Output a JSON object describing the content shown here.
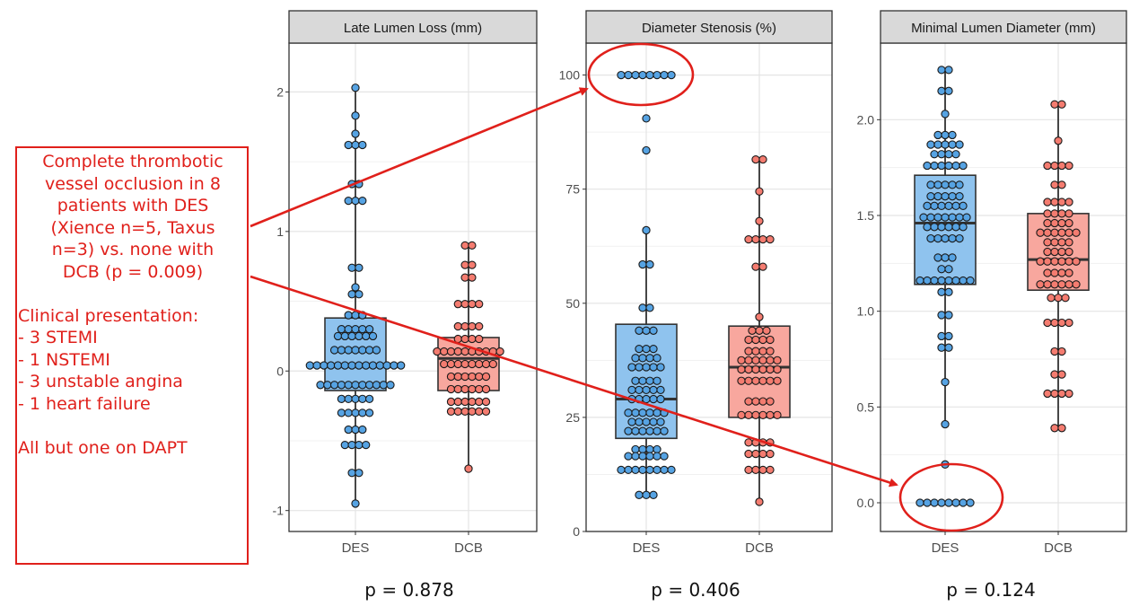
{
  "annotation": {
    "occlusion_lines": [
      "Complete thrombotic",
      "vessel occlusion in 8",
      "patients with DES",
      "(Xience n=5, Taxus",
      "n=3) vs. none with",
      "DCB (p = 0.009)"
    ],
    "presentation_title": "Clinical presentation:",
    "presentation_items": [
      "- 3 STEMI",
      "- 1 NSTEMI",
      "- 3 unstable angina",
      "- 1 heart failure"
    ],
    "dapt_note": "All but one on DAPT"
  },
  "pvalues": [
    "p = 0.878",
    "p = 0.406",
    "p = 0.124"
  ],
  "colors": {
    "des_fill": "#8fc3ee",
    "des_point": "#56a3e3",
    "dcb_fill": "#f8a79e",
    "dcb_point": "#f47c70",
    "annotation": "#e0201b"
  },
  "chart_data": [
    {
      "type": "box",
      "title": "Late Lumen Loss (mm)",
      "categories": [
        "DES",
        "DCB"
      ],
      "ylim": [
        -1.15,
        2.35
      ],
      "yticks": [
        -1,
        0,
        1,
        2
      ],
      "ytick_labels": [
        "-1",
        "0",
        "1",
        "2"
      ],
      "grid": true,
      "boxes": [
        {
          "name": "DES",
          "min": -0.95,
          "q1": -0.14,
          "median": -0.1,
          "q3": 0.38,
          "max": 2.03
        },
        {
          "name": "DCB",
          "min": -0.7,
          "q1": -0.14,
          "median": 0.09,
          "q3": 0.24,
          "max": 0.9
        }
      ],
      "points": [
        {
          "group": "DES",
          "y": 2.03,
          "n": 1
        },
        {
          "group": "DES",
          "y": 1.83,
          "n": 1
        },
        {
          "group": "DES",
          "y": 1.7,
          "n": 1
        },
        {
          "group": "DES",
          "y": 1.62,
          "n": 3
        },
        {
          "group": "DES",
          "y": 1.34,
          "n": 2
        },
        {
          "group": "DES",
          "y": 1.22,
          "n": 3
        },
        {
          "group": "DES",
          "y": 0.74,
          "n": 2
        },
        {
          "group": "DES",
          "y": 0.6,
          "n": 1
        },
        {
          "group": "DES",
          "y": 0.55,
          "n": 2
        },
        {
          "group": "DES",
          "y": 0.4,
          "n": 3
        },
        {
          "group": "DES",
          "y": 0.3,
          "n": 5
        },
        {
          "group": "DES",
          "y": 0.25,
          "n": 6
        },
        {
          "group": "DES",
          "y": 0.15,
          "n": 7
        },
        {
          "group": "DES",
          "y": 0.04,
          "n": 14
        },
        {
          "group": "DES",
          "y": -0.1,
          "n": 11
        },
        {
          "group": "DES",
          "y": -0.2,
          "n": 5
        },
        {
          "group": "DES",
          "y": -0.3,
          "n": 5
        },
        {
          "group": "DES",
          "y": -0.42,
          "n": 3
        },
        {
          "group": "DES",
          "y": -0.53,
          "n": 4
        },
        {
          "group": "DES",
          "y": -0.73,
          "n": 2
        },
        {
          "group": "DES",
          "y": -0.95,
          "n": 1
        },
        {
          "group": "DCB",
          "y": 0.9,
          "n": 2
        },
        {
          "group": "DCB",
          "y": 0.76,
          "n": 2
        },
        {
          "group": "DCB",
          "y": 0.67,
          "n": 2
        },
        {
          "group": "DCB",
          "y": 0.48,
          "n": 4
        },
        {
          "group": "DCB",
          "y": 0.32,
          "n": 4
        },
        {
          "group": "DCB",
          "y": 0.23,
          "n": 4
        },
        {
          "group": "DCB",
          "y": 0.14,
          "n": 10
        },
        {
          "group": "DCB",
          "y": 0.05,
          "n": 8
        },
        {
          "group": "DCB",
          "y": -0.04,
          "n": 6
        },
        {
          "group": "DCB",
          "y": -0.13,
          "n": 6
        },
        {
          "group": "DCB",
          "y": -0.22,
          "n": 6
        },
        {
          "group": "DCB",
          "y": -0.29,
          "n": 6
        },
        {
          "group": "DCB",
          "y": -0.7,
          "n": 1
        }
      ]
    },
    {
      "type": "box",
      "title": "Diameter Stenosis (%)",
      "categories": [
        "DES",
        "DCB"
      ],
      "ylim": [
        0,
        107
      ],
      "yticks": [
        0,
        25,
        50,
        75,
        100
      ],
      "ytick_labels": [
        "0",
        "25",
        "50",
        "75",
        "100"
      ],
      "grid": true,
      "boxes": [
        {
          "name": "DES",
          "min": 8,
          "q1": 20.4,
          "median": 29,
          "q3": 45.4,
          "max": 66
        },
        {
          "name": "DCB",
          "min": 6.5,
          "q1": 25,
          "median": 36,
          "q3": 45,
          "max": 81.5
        }
      ],
      "points": [
        {
          "group": "DES",
          "y": 100,
          "n": 8
        },
        {
          "group": "DES",
          "y": 90.5,
          "n": 1
        },
        {
          "group": "DES",
          "y": 83.5,
          "n": 1
        },
        {
          "group": "DES",
          "y": 66,
          "n": 1
        },
        {
          "group": "DES",
          "y": 58.5,
          "n": 2
        },
        {
          "group": "DES",
          "y": 49,
          "n": 2
        },
        {
          "group": "DES",
          "y": 44,
          "n": 3
        },
        {
          "group": "DES",
          "y": 40,
          "n": 3
        },
        {
          "group": "DES",
          "y": 38,
          "n": 4
        },
        {
          "group": "DES",
          "y": 36,
          "n": 5
        },
        {
          "group": "DES",
          "y": 33,
          "n": 4
        },
        {
          "group": "DES",
          "y": 31,
          "n": 5
        },
        {
          "group": "DES",
          "y": 29,
          "n": 5
        },
        {
          "group": "DES",
          "y": 26,
          "n": 6
        },
        {
          "group": "DES",
          "y": 24,
          "n": 5
        },
        {
          "group": "DES",
          "y": 22,
          "n": 6
        },
        {
          "group": "DES",
          "y": 18,
          "n": 4
        },
        {
          "group": "DES",
          "y": 16.5,
          "n": 6
        },
        {
          "group": "DES",
          "y": 13.5,
          "n": 8
        },
        {
          "group": "DES",
          "y": 8,
          "n": 3
        },
        {
          "group": "DCB",
          "y": 81.5,
          "n": 2
        },
        {
          "group": "DCB",
          "y": 74.5,
          "n": 1
        },
        {
          "group": "DCB",
          "y": 68,
          "n": 1
        },
        {
          "group": "DCB",
          "y": 64,
          "n": 4
        },
        {
          "group": "DCB",
          "y": 58,
          "n": 2
        },
        {
          "group": "DCB",
          "y": 47,
          "n": 1
        },
        {
          "group": "DCB",
          "y": 44,
          "n": 3
        },
        {
          "group": "DCB",
          "y": 42,
          "n": 4
        },
        {
          "group": "DCB",
          "y": 39.5,
          "n": 4
        },
        {
          "group": "DCB",
          "y": 37.5,
          "n": 6
        },
        {
          "group": "DCB",
          "y": 35.5,
          "n": 6
        },
        {
          "group": "DCB",
          "y": 33,
          "n": 6
        },
        {
          "group": "DCB",
          "y": 28.5,
          "n": 4
        },
        {
          "group": "DCB",
          "y": 25.5,
          "n": 6
        },
        {
          "group": "DCB",
          "y": 19.5,
          "n": 4
        },
        {
          "group": "DCB",
          "y": 17,
          "n": 4
        },
        {
          "group": "DCB",
          "y": 13.5,
          "n": 4
        },
        {
          "group": "DCB",
          "y": 6.5,
          "n": 1
        }
      ]
    },
    {
      "type": "box",
      "title": "Minimal Lumen Diameter (mm)",
      "categories": [
        "DES",
        "DCB"
      ],
      "ylim": [
        -0.15,
        2.4
      ],
      "yticks": [
        0,
        0.5,
        1,
        1.5,
        2
      ],
      "ytick_labels": [
        "0.0",
        "0.5",
        "1.0",
        "1.5",
        "2.0"
      ],
      "grid": true,
      "boxes": [
        {
          "name": "DES",
          "min": 0.41,
          "q1": 1.14,
          "median": 1.46,
          "q3": 1.71,
          "max": 2.26
        },
        {
          "name": "DCB",
          "min": 0.39,
          "q1": 1.11,
          "median": 1.27,
          "q3": 1.51,
          "max": 2.08
        }
      ],
      "points": [
        {
          "group": "DES",
          "y": 2.26,
          "n": 2
        },
        {
          "group": "DES",
          "y": 2.15,
          "n": 2
        },
        {
          "group": "DES",
          "y": 2.03,
          "n": 1
        },
        {
          "group": "DES",
          "y": 1.92,
          "n": 3
        },
        {
          "group": "DES",
          "y": 1.87,
          "n": 5
        },
        {
          "group": "DES",
          "y": 1.82,
          "n": 4
        },
        {
          "group": "DES",
          "y": 1.76,
          "n": 6
        },
        {
          "group": "DES",
          "y": 1.66,
          "n": 5
        },
        {
          "group": "DES",
          "y": 1.6,
          "n": 5
        },
        {
          "group": "DES",
          "y": 1.55,
          "n": 6
        },
        {
          "group": "DES",
          "y": 1.49,
          "n": 7
        },
        {
          "group": "DES",
          "y": 1.44,
          "n": 6
        },
        {
          "group": "DES",
          "y": 1.38,
          "n": 5
        },
        {
          "group": "DES",
          "y": 1.28,
          "n": 3
        },
        {
          "group": "DES",
          "y": 1.22,
          "n": 2
        },
        {
          "group": "DES",
          "y": 1.16,
          "n": 8
        },
        {
          "group": "DES",
          "y": 1.1,
          "n": 2
        },
        {
          "group": "DES",
          "y": 0.98,
          "n": 2
        },
        {
          "group": "DES",
          "y": 0.87,
          "n": 2
        },
        {
          "group": "DES",
          "y": 0.81,
          "n": 2
        },
        {
          "group": "DES",
          "y": 0.63,
          "n": 1
        },
        {
          "group": "DES",
          "y": 0.41,
          "n": 1
        },
        {
          "group": "DES",
          "y": 0.2,
          "n": 1
        },
        {
          "group": "DES",
          "y": 0,
          "n": 8
        },
        {
          "group": "DCB",
          "y": 2.08,
          "n": 2
        },
        {
          "group": "DCB",
          "y": 1.89,
          "n": 1
        },
        {
          "group": "DCB",
          "y": 1.76,
          "n": 4
        },
        {
          "group": "DCB",
          "y": 1.66,
          "n": 2
        },
        {
          "group": "DCB",
          "y": 1.57,
          "n": 4
        },
        {
          "group": "DCB",
          "y": 1.51,
          "n": 4
        },
        {
          "group": "DCB",
          "y": 1.46,
          "n": 4
        },
        {
          "group": "DCB",
          "y": 1.41,
          "n": 6
        },
        {
          "group": "DCB",
          "y": 1.36,
          "n": 4
        },
        {
          "group": "DCB",
          "y": 1.31,
          "n": 4
        },
        {
          "group": "DCB",
          "y": 1.26,
          "n": 6
        },
        {
          "group": "DCB",
          "y": 1.2,
          "n": 4
        },
        {
          "group": "DCB",
          "y": 1.14,
          "n": 6
        },
        {
          "group": "DCB",
          "y": 1.07,
          "n": 3
        },
        {
          "group": "DCB",
          "y": 0.94,
          "n": 4
        },
        {
          "group": "DCB",
          "y": 0.79,
          "n": 2
        },
        {
          "group": "DCB",
          "y": 0.67,
          "n": 2
        },
        {
          "group": "DCB",
          "y": 0.57,
          "n": 4
        },
        {
          "group": "DCB",
          "y": 0.39,
          "n": 2
        }
      ]
    }
  ]
}
